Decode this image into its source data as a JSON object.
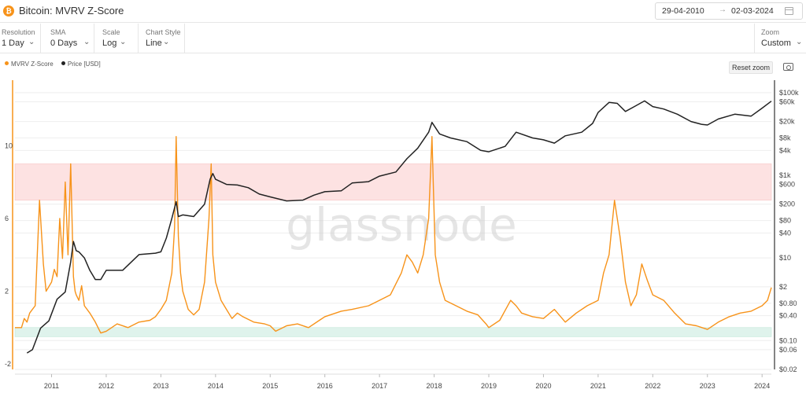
{
  "header": {
    "title": "Bitcoin: MVRV Z-Score",
    "coin_symbol": "₿",
    "date_from": "29-04-2010",
    "date_arrow": "→",
    "date_to": "02-03-2024"
  },
  "controls": [
    {
      "label": "Resolution",
      "value": "1 Day"
    },
    {
      "label": "SMA",
      "value": "0 Days"
    },
    {
      "label": "Scale",
      "value": "Log"
    },
    {
      "label": "Chart Style",
      "value": "Line"
    }
  ],
  "zoom": {
    "label": "Zoom",
    "value": "Custom"
  },
  "reset_zoom_label": "Reset zoom",
  "watermark": "glassnode",
  "colors": {
    "zscore": "#f7931a",
    "price": "#222222",
    "red_band": "#fde2e2",
    "green_band": "#dff3ec"
  },
  "chart_data": {
    "type": "line",
    "title": "Bitcoin: MVRV Z-Score",
    "legend": {
      "position": "top-left",
      "entries": [
        "MVRV Z-Score",
        "Price [USD]"
      ]
    },
    "x_ticks": [
      "2011",
      "2012",
      "2013",
      "2014",
      "2015",
      "2016",
      "2017",
      "2018",
      "2019",
      "2020",
      "2021",
      "2022",
      "2023",
      "2024"
    ],
    "x_range": [
      2010.33,
      2024.17
    ],
    "left_axis": {
      "ticks": [
        "10",
        "6",
        "2",
        "-2"
      ],
      "tick_values": [
        10,
        6,
        2,
        -2
      ],
      "range": [
        -2.3,
        13.6
      ]
    },
    "right_axis": {
      "scale": "log",
      "ticks": [
        "$100k",
        "$60k",
        "$20k",
        "$8k",
        "$4k",
        "$1k",
        "$600",
        "$200",
        "$80",
        "$40",
        "$10",
        "$2",
        "$0.80",
        "$0.40",
        "$0.10",
        "$0.06",
        "$0.02"
      ],
      "tick_values": [
        100000,
        60000,
        20000,
        8000,
        4000,
        1000,
        600,
        200,
        80,
        40,
        10,
        2,
        0.8,
        0.4,
        0.1,
        0.06,
        0.02
      ],
      "range": [
        0.02,
        200000
      ]
    },
    "bands": [
      {
        "color": "red",
        "z_from": 7.0,
        "z_to": 9.0
      },
      {
        "color": "green",
        "z_from": -0.5,
        "z_to": 0.0
      }
    ],
    "series": [
      {
        "name": "MVRV Z-Score",
        "color": "#f7931a",
        "x": [
          2010.33,
          2010.45,
          2010.5,
          2010.55,
          2010.6,
          2010.65,
          2010.7,
          2010.78,
          2010.85,
          2010.9,
          2011.0,
          2011.05,
          2011.1,
          2011.15,
          2011.2,
          2011.25,
          2011.3,
          2011.35,
          2011.4,
          2011.43,
          2011.45,
          2011.5,
          2011.55,
          2011.6,
          2011.7,
          2011.8,
          2011.9,
          2012.0,
          2012.2,
          2012.4,
          2012.6,
          2012.8,
          2012.9,
          2013.0,
          2013.1,
          2013.2,
          2013.25,
          2013.28,
          2013.32,
          2013.36,
          2013.4,
          2013.5,
          2013.6,
          2013.7,
          2013.8,
          2013.88,
          2013.92,
          2013.95,
          2014.0,
          2014.1,
          2014.2,
          2014.3,
          2014.4,
          2014.5,
          2014.7,
          2014.9,
          2015.0,
          2015.1,
          2015.3,
          2015.5,
          2015.7,
          2015.9,
          2016.0,
          2016.3,
          2016.5,
          2016.8,
          2017.0,
          2017.2,
          2017.4,
          2017.5,
          2017.6,
          2017.7,
          2017.8,
          2017.9,
          2017.96,
          2018.02,
          2018.1,
          2018.2,
          2018.4,
          2018.6,
          2018.8,
          2018.95,
          2019.0,
          2019.2,
          2019.4,
          2019.5,
          2019.6,
          2019.8,
          2020.0,
          2020.2,
          2020.4,
          2020.6,
          2020.8,
          2021.0,
          2021.1,
          2021.2,
          2021.3,
          2021.4,
          2021.5,
          2021.6,
          2021.7,
          2021.8,
          2021.9,
          2022.0,
          2022.2,
          2022.4,
          2022.6,
          2022.8,
          2023.0,
          2023.2,
          2023.4,
          2023.6,
          2023.8,
          2024.0,
          2024.1,
          2024.17
        ],
        "y": [
          0.0,
          0.0,
          0.5,
          0.3,
          0.8,
          1.0,
          1.2,
          7.0,
          3.5,
          2.0,
          2.5,
          3.2,
          2.8,
          6.0,
          3.8,
          8.0,
          4.0,
          9.0,
          2.8,
          2.0,
          1.8,
          1.5,
          2.3,
          1.2,
          0.8,
          0.3,
          -0.3,
          -0.2,
          0.2,
          0.0,
          0.3,
          0.4,
          0.6,
          1.0,
          1.5,
          3.0,
          5.5,
          10.5,
          5.0,
          3.0,
          2.0,
          1.0,
          0.7,
          1.0,
          2.5,
          6.0,
          9.0,
          4.0,
          2.5,
          1.5,
          1.0,
          0.5,
          0.8,
          0.6,
          0.3,
          0.2,
          0.1,
          -0.2,
          0.1,
          0.2,
          0.0,
          0.4,
          0.6,
          0.9,
          1.0,
          1.2,
          1.5,
          1.8,
          3.0,
          4.0,
          3.6,
          3.0,
          4.0,
          6.0,
          10.5,
          4.0,
          2.5,
          1.5,
          1.2,
          0.9,
          0.7,
          0.2,
          0.0,
          0.4,
          1.5,
          1.2,
          0.8,
          0.6,
          0.5,
          1.0,
          0.3,
          0.8,
          1.2,
          1.5,
          3.0,
          4.0,
          7.0,
          5.0,
          2.5,
          1.2,
          1.8,
          3.5,
          2.6,
          1.8,
          1.5,
          0.8,
          0.2,
          0.1,
          -0.1,
          0.3,
          0.6,
          0.8,
          0.9,
          1.2,
          1.5,
          2.2
        ]
      },
      {
        "name": "Price [USD]",
        "color": "#222222",
        "x": [
          2010.55,
          2010.65,
          2010.8,
          2010.95,
          2011.1,
          2011.25,
          2011.35,
          2011.4,
          2011.45,
          2011.5,
          2011.6,
          2011.7,
          2011.8,
          2011.9,
          2012.0,
          2012.3,
          2012.6,
          2012.9,
          2013.0,
          2013.1,
          2013.2,
          2013.28,
          2013.32,
          2013.4,
          2013.6,
          2013.8,
          2013.9,
          2013.95,
          2014.0,
          2014.2,
          2014.4,
          2014.6,
          2014.8,
          2015.0,
          2015.3,
          2015.6,
          2015.8,
          2016.0,
          2016.3,
          2016.5,
          2016.8,
          2017.0,
          2017.3,
          2017.5,
          2017.7,
          2017.9,
          2017.96,
          2018.1,
          2018.3,
          2018.6,
          2018.85,
          2019.0,
          2019.3,
          2019.5,
          2019.8,
          2020.0,
          2020.2,
          2020.4,
          2020.7,
          2020.9,
          2021.0,
          2021.2,
          2021.35,
          2021.5,
          2021.65,
          2021.85,
          2022.0,
          2022.2,
          2022.45,
          2022.7,
          2022.9,
          2023.0,
          2023.2,
          2023.5,
          2023.8,
          2024.0,
          2024.17
        ],
        "y": [
          0.05,
          0.06,
          0.2,
          0.3,
          1.0,
          1.5,
          8.0,
          25.0,
          15.0,
          14.0,
          10.0,
          5.0,
          3.0,
          3.0,
          5.0,
          5.0,
          12.0,
          13.0,
          14.0,
          30.0,
          90.0,
          230.0,
          100.0,
          110.0,
          100.0,
          200.0,
          800.0,
          1100.0,
          800.0,
          600.0,
          580.0,
          500.0,
          350.0,
          300.0,
          240.0,
          250.0,
          330.0,
          400.0,
          420.0,
          650.0,
          700.0,
          950.0,
          1200.0,
          2500.0,
          4500.0,
          11000.0,
          19000.0,
          10000.0,
          8000.0,
          6500.0,
          4000.0,
          3700.0,
          5000.0,
          11000.0,
          8000.0,
          7200.0,
          6000.0,
          9000.0,
          11000.0,
          18000.0,
          33000.0,
          58000.0,
          55000.0,
          35000.0,
          45000.0,
          63000.0,
          46000.0,
          40000.0,
          30000.0,
          20000.0,
          17000.0,
          16500.0,
          23000.0,
          30000.0,
          27000.0,
          42000.0,
          62000.0
        ]
      }
    ]
  }
}
